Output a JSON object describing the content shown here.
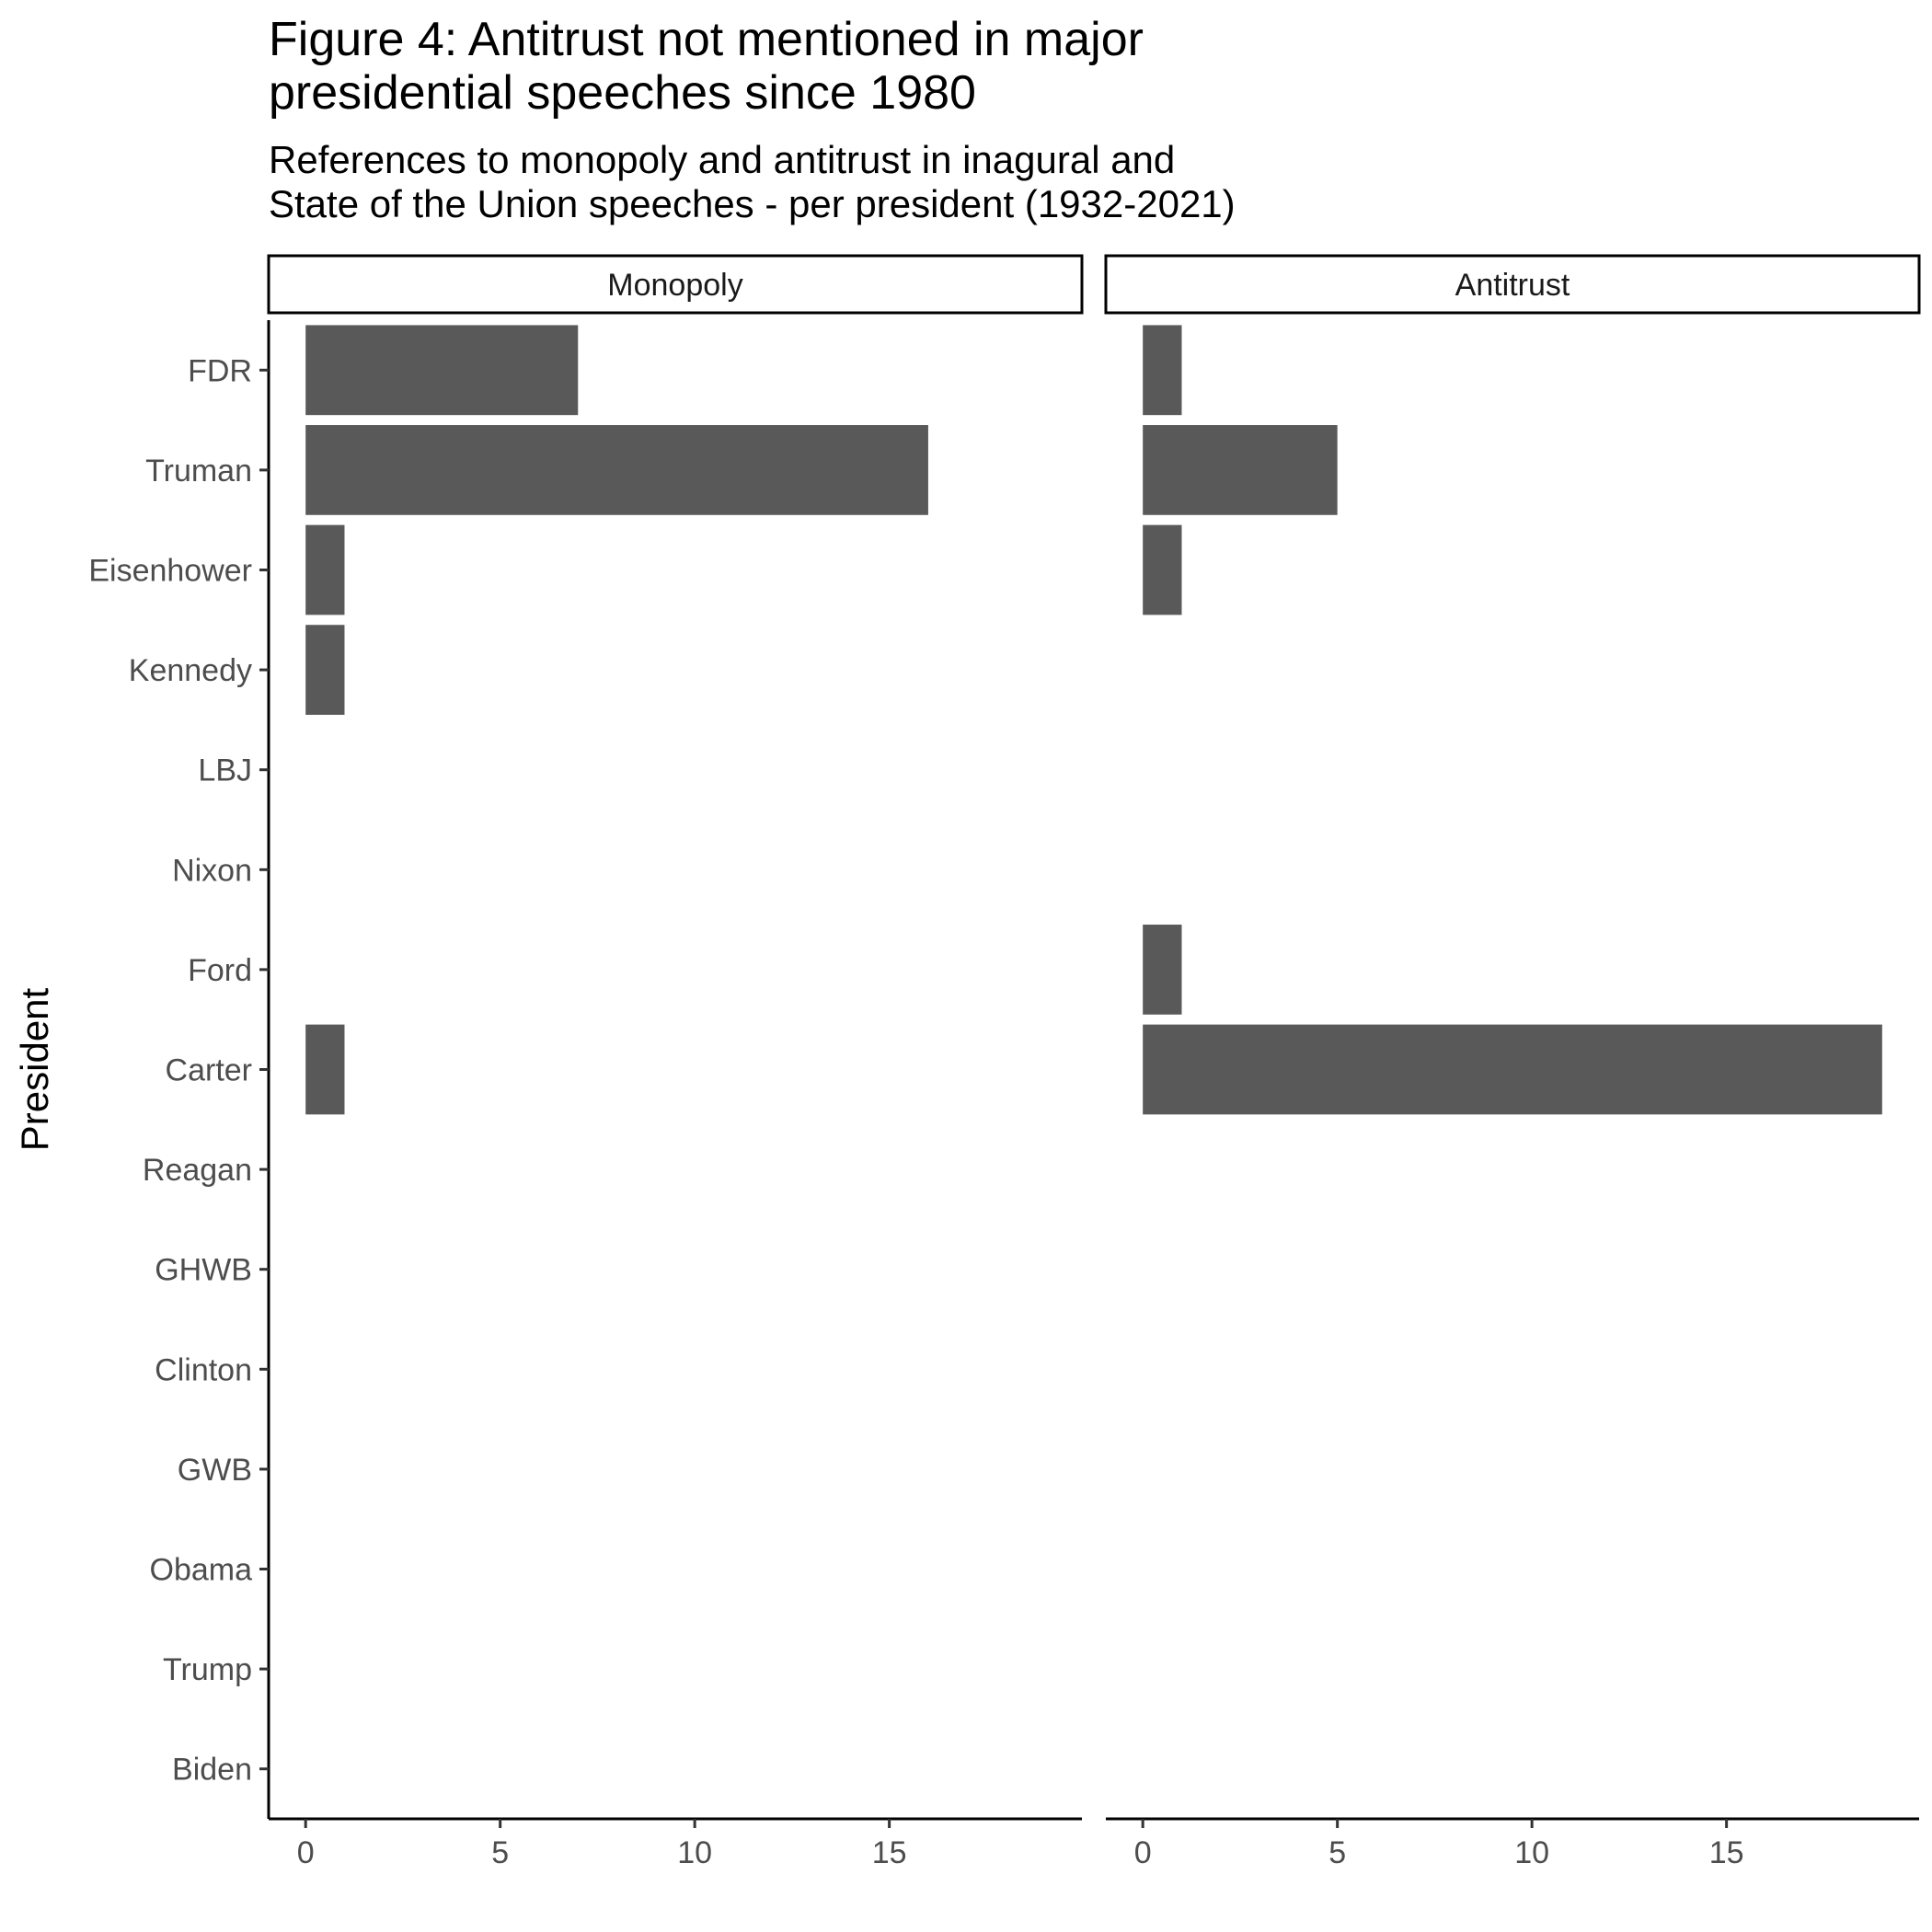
{
  "chart_data": {
    "type": "bar",
    "orientation": "horizontal",
    "title": "Figure 4: Antitrust not mentioned in major\npresidential speeches since 1980",
    "subtitle": "References to monopoly and antitrust in inagural and\nState of the Union speeches - per president (1932-2021)",
    "ylabel": "President",
    "xlabel": "",
    "categories": [
      "FDR",
      "Truman",
      "Eisenhower",
      "Kennedy",
      "LBJ",
      "Nixon",
      "Ford",
      "Carter",
      "Reagan",
      "GHWB",
      "Clinton",
      "GWB",
      "Obama",
      "Trump",
      "Biden"
    ],
    "xlim": [
      -0.95,
      19.95
    ],
    "x_ticks": [
      0,
      5,
      10,
      15
    ],
    "grid": false,
    "bar_color": "#595959",
    "facets": [
      {
        "label": "Monopoly",
        "values": [
          7,
          16,
          1,
          1,
          0,
          0,
          0,
          1,
          0,
          0,
          0,
          0,
          0,
          0,
          0
        ]
      },
      {
        "label": "Antitrust",
        "values": [
          1,
          5,
          1,
          0,
          0,
          0,
          1,
          19,
          0,
          0,
          0,
          0,
          0,
          0,
          0
        ]
      }
    ]
  }
}
